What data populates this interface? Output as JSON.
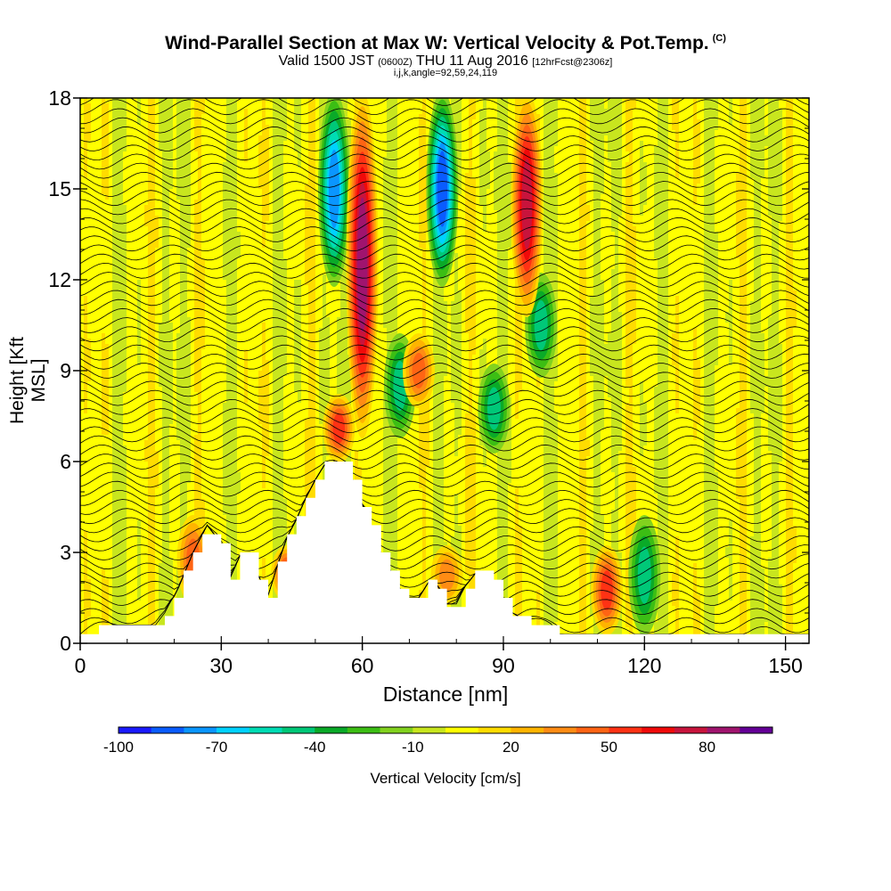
{
  "header": {
    "title": "Wind-Parallel Section at Max W: Vertical Velocity & Pot.Temp.",
    "copyright": "(C)",
    "valid_prefix": "Valid 1500 JST",
    "valid_utc": "(0600Z)",
    "valid_date": "THU 11 Aug 2016",
    "forecast": "[12hrFcst@2306z]",
    "params": "i,j,k,angle=92,59,24,119"
  },
  "chart_data": {
    "type": "heatmap",
    "title": "Wind-Parallel Section at Max W: Vertical Velocity & Pot.Temp.",
    "xlabel": "Distance [nm]",
    "ylabel": "Height [Kft MSL]",
    "xlim": [
      0,
      155
    ],
    "ylim": [
      0,
      18
    ],
    "xticks": [
      0,
      30,
      60,
      90,
      120,
      150
    ],
    "yticks": [
      0,
      3,
      6,
      9,
      12,
      15,
      18
    ],
    "terrain": {
      "x": [
        0,
        7,
        16,
        18,
        20,
        24,
        27,
        30,
        32,
        34,
        36,
        38,
        40,
        42,
        44,
        46,
        48,
        50,
        52,
        54,
        56,
        58,
        60,
        62,
        64,
        66,
        68,
        70,
        72,
        74,
        76,
        78,
        80,
        82,
        84,
        86,
        88,
        90,
        92,
        94,
        96,
        98,
        100,
        102,
        155
      ],
      "heights": [
        0.3,
        0.6,
        0.6,
        0.9,
        1.5,
        3.0,
        3.9,
        3.3,
        2.2,
        2.9,
        2.9,
        2.2,
        1.6,
        2.6,
        3.5,
        4.1,
        4.8,
        5.4,
        5.9,
        6.0,
        5.9,
        5.3,
        4.6,
        3.8,
        2.9,
        2.4,
        1.8,
        1.5,
        1.5,
        2.0,
        1.9,
        1.3,
        1.3,
        1.9,
        2.3,
        2.3,
        2.0,
        1.5,
        1.0,
        0.8,
        0.7,
        0.6,
        0.5,
        0.3,
        0.3
      ]
    },
    "updrafts": [
      {
        "x": 60,
        "top": 18,
        "bottom": 7,
        "peak": 80
      },
      {
        "x": 95,
        "top": 18,
        "bottom": 11,
        "peak": 70
      },
      {
        "x": 55,
        "top": 8,
        "bottom": 6.2,
        "peak": 50
      },
      {
        "x": 24,
        "top": 4,
        "bottom": 1.5,
        "peak": 40
      },
      {
        "x": 44,
        "top": 3,
        "bottom": 1.6,
        "peak": 50
      },
      {
        "x": 112,
        "top": 3,
        "bottom": 0.5,
        "peak": 50
      },
      {
        "x": 72,
        "top": 10,
        "bottom": 8,
        "peak": 40
      },
      {
        "x": 78,
        "top": 3,
        "bottom": 1.5,
        "peak": 30
      }
    ],
    "downdrafts": [
      {
        "x": 54,
        "top": 18,
        "bottom": 12,
        "peak": -70
      },
      {
        "x": 77,
        "top": 18,
        "bottom": 12,
        "peak": -80
      },
      {
        "x": 68,
        "top": 10,
        "bottom": 7,
        "peak": -40
      },
      {
        "x": 88,
        "top": 9,
        "bottom": 6.5,
        "peak": -40
      },
      {
        "x": 120,
        "top": 4,
        "bottom": 0.5,
        "peak": -40
      },
      {
        "x": 98,
        "top": 12,
        "bottom": 9,
        "peak": -40
      }
    ],
    "colorbar": {
      "label": "Vertical Velocity [cm/s]",
      "ticks": [
        "-100",
        "-70",
        "-40",
        "-10",
        "20",
        "50",
        "80"
      ],
      "min": -100,
      "max": 100,
      "colors": [
        "#1a1aff",
        "#0a5cff",
        "#0a96ff",
        "#00d2ff",
        "#00dcb4",
        "#00c878",
        "#0aaa28",
        "#3cbe14",
        "#82d21e",
        "#c8e61e",
        "#ffff00",
        "#ffdc00",
        "#ffb400",
        "#ff8c14",
        "#ff6414",
        "#ff3214",
        "#f00a0a",
        "#c8143c",
        "#a0146e",
        "#640096"
      ]
    }
  }
}
